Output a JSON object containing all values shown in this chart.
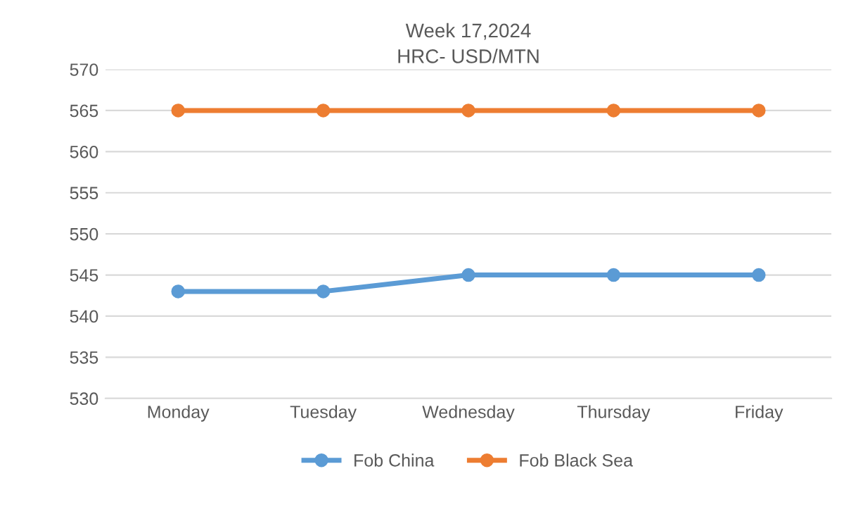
{
  "chart_data": {
    "type": "line",
    "title": "Week 17,2024",
    "subtitle": "HRC- USD/MTN",
    "categories": [
      "Monday",
      "Tuesday",
      "Wednesday",
      "Thursday",
      "Friday"
    ],
    "series": [
      {
        "name": "Fob China",
        "color": "#5b9bd5",
        "values": [
          543,
          543,
          545,
          545,
          545
        ]
      },
      {
        "name": "Fob Black Sea",
        "color": "#ed7d31",
        "values": [
          565,
          565,
          565,
          565,
          565
        ]
      }
    ],
    "ylim": [
      530,
      570
    ],
    "yticks": [
      530,
      535,
      540,
      545,
      550,
      555,
      560,
      565,
      570
    ],
    "grid": "y",
    "legend": "bottom",
    "marker": "circle",
    "line_style": "solid"
  }
}
